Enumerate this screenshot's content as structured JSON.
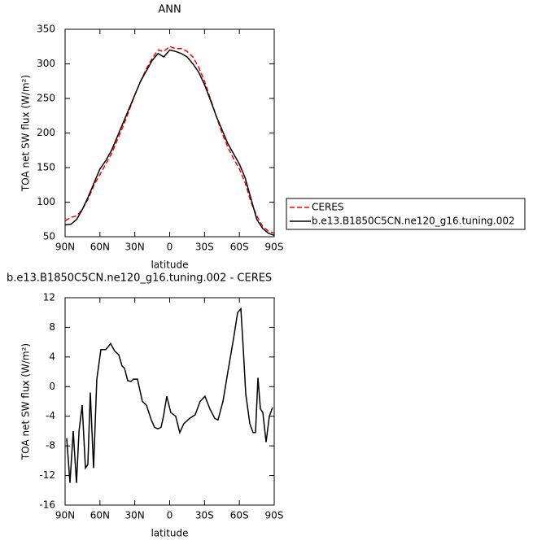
{
  "chart_data": [
    {
      "type": "line",
      "title": "ANN",
      "x_label": "latitude",
      "y_label": "TOA net SW flux (W/m²)",
      "x": [
        90,
        85,
        80,
        75,
        70,
        65,
        60,
        55,
        50,
        45,
        40,
        35,
        30,
        25,
        20,
        15,
        10,
        5,
        0,
        -5,
        -10,
        -15,
        -20,
        -25,
        -30,
        -35,
        -40,
        -45,
        -50,
        -55,
        -60,
        -65,
        -70,
        -75,
        -80,
        -85,
        -90
      ],
      "series": [
        {
          "name": "CERES",
          "color": "#ff0000",
          "linestyle": "dashed",
          "values": [
            73,
            78,
            80,
            90,
            105,
            125,
            140,
            155,
            170,
            190,
            210,
            232,
            255,
            275,
            293,
            308,
            320,
            318,
            325,
            322,
            322,
            318,
            310,
            295,
            275,
            250,
            225,
            200,
            180,
            163,
            148,
            128,
            100,
            80,
            65,
            58,
            55
          ]
        },
        {
          "name": "b.e13.B1850C5CN.ne120_g16.tuning.002",
          "color": "#000000",
          "linestyle": "solid",
          "values": [
            67,
            68,
            75,
            90,
            108,
            128,
            148,
            160,
            175,
            195,
            215,
            235,
            255,
            275,
            290,
            305,
            315,
            310,
            320,
            318,
            315,
            310,
            300,
            288,
            270,
            248,
            225,
            205,
            185,
            170,
            155,
            135,
            105,
            75,
            62,
            55,
            52
          ]
        }
      ],
      "xlim": [
        90,
        -90
      ],
      "xticks": [
        {
          "value": 90,
          "label": "90N"
        },
        {
          "value": 60,
          "label": "60N"
        },
        {
          "value": 30,
          "label": "30N"
        },
        0,
        {
          "value": -30,
          "label": "30S"
        },
        {
          "value": -60,
          "label": "60S"
        },
        {
          "value": -90,
          "label": "90S"
        }
      ],
      "ylim": [
        50,
        350
      ],
      "yticks": [
        50,
        100,
        150,
        200,
        250,
        300,
        350
      ],
      "legend": "right"
    },
    {
      "type": "line",
      "title": "b.e13.B1850C5CN.ne120_g16.tuning.002 - CERES",
      "x_label": "latitude",
      "y_label": "TOA net SW flux (W/m²)",
      "x": [
        88.6,
        85.8,
        83,
        80.2,
        78,
        75.3,
        72.5,
        70.4,
        68.3,
        65.5,
        62.7,
        59.2,
        55,
        50.8,
        47.3,
        43.8,
        41,
        38.9,
        36.1,
        33.3,
        31.2,
        27.7,
        23.5,
        20,
        15.8,
        13,
        10.2,
        7.4,
        5.3,
        2.5,
        -1,
        -5.2,
        -8.7,
        -12.2,
        -17.1,
        -22,
        -26.2,
        -30.4,
        -34.6,
        -38.9,
        -41.6,
        -45.9,
        -50.1,
        -55,
        -58.5,
        -61.3,
        -63.4,
        -65.5,
        -69,
        -71.8,
        -73.9,
        -76,
        -78.1,
        -80.2,
        -83,
        -85.8,
        -88.6
      ],
      "values": [
        -7,
        -13,
        -6,
        -13,
        -6,
        -2.5,
        -11,
        -10.5,
        -0.8,
        -11,
        1,
        5,
        5,
        5.8,
        4.8,
        4.3,
        2.8,
        2.5,
        0.8,
        0.7,
        1,
        1,
        -2,
        -2.5,
        -4.5,
        -5.5,
        -5.7,
        -5.5,
        -4,
        -1.3,
        -3.5,
        -4,
        -6.2,
        -5,
        -4.3,
        -3.8,
        -2,
        -1.3,
        -3,
        -4.3,
        -4.5,
        -2,
        2,
        6.5,
        10,
        10.5,
        5,
        -1,
        -5,
        -6.2,
        -6.2,
        1.2,
        -3,
        -3.5,
        -7.5,
        -4,
        -2.8
      ],
      "color": "#000000",
      "xlim": [
        90,
        -90
      ],
      "xticks": [
        {
          "value": 90,
          "label": "90N"
        },
        {
          "value": 60,
          "label": "60N"
        },
        {
          "value": 30,
          "label": "30N"
        },
        0,
        {
          "value": -30,
          "label": "30S"
        },
        {
          "value": -60,
          "label": "60S"
        },
        {
          "value": -90,
          "label": "90S"
        }
      ],
      "ylim": [
        -16,
        12
      ],
      "yticks": [
        -16,
        -12,
        -8,
        -4,
        0,
        4,
        8,
        12
      ]
    }
  ]
}
